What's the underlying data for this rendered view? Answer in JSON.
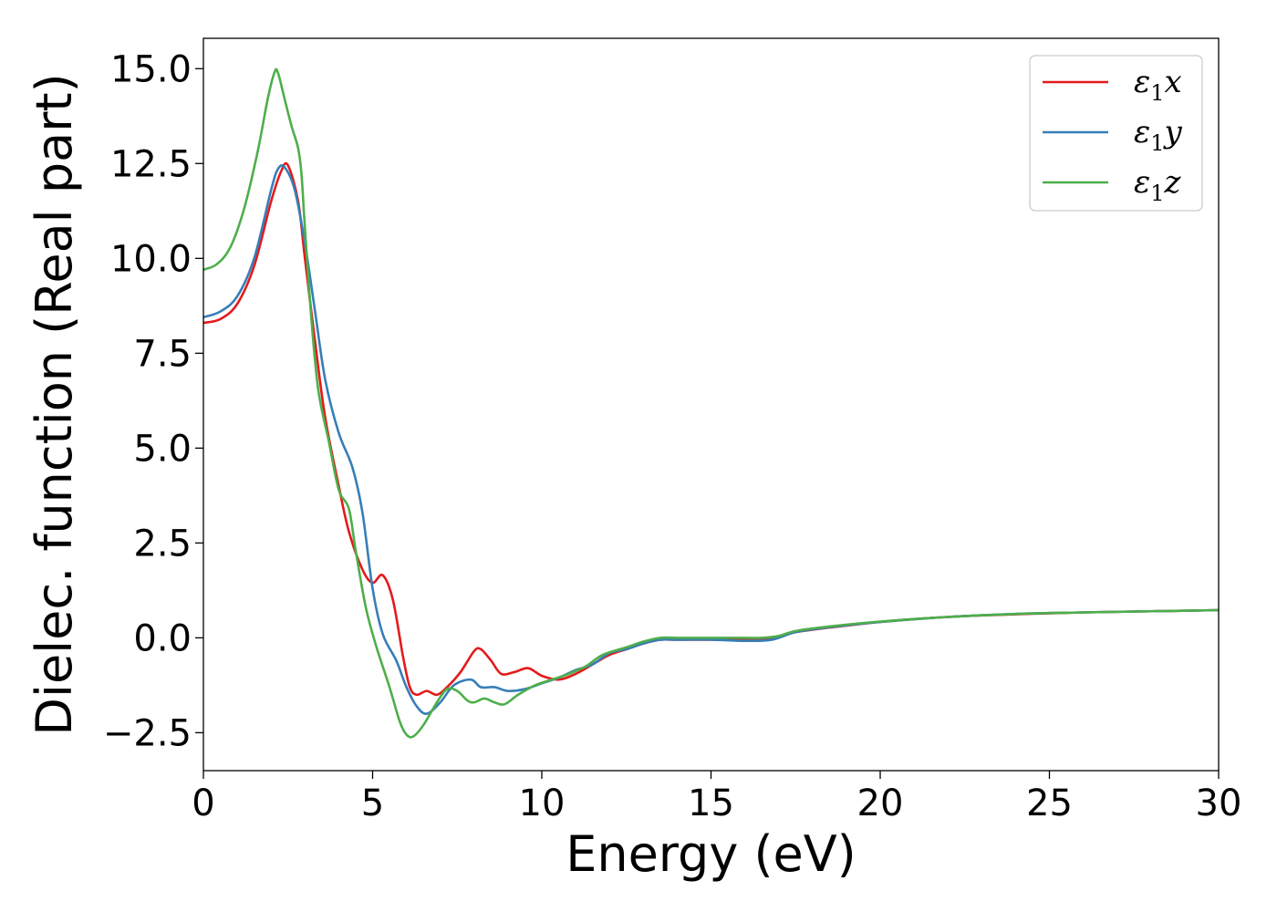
{
  "chart_data": {
    "type": "line",
    "title": "",
    "xlabel": "Energy (eV)",
    "ylabel": "Dielec. function (Real part)",
    "xlim": [
      0,
      30
    ],
    "ylim": [
      -3.5,
      15.8
    ],
    "xticks": [
      0,
      5,
      10,
      15,
      20,
      25,
      30
    ],
    "xtick_labels": [
      "0",
      "5",
      "10",
      "15",
      "20",
      "25",
      "30"
    ],
    "yticks": [
      -2.5,
      0.0,
      2.5,
      5.0,
      7.5,
      10.0,
      12.5,
      15.0
    ],
    "ytick_labels": [
      "−2.5",
      "0.0",
      "2.5",
      "5.0",
      "7.5",
      "10.0",
      "12.5",
      "15.0"
    ],
    "grid": false,
    "legend_position": "top-right",
    "series": [
      {
        "name": "ε1x",
        "name_base": "ε",
        "name_sub": "1",
        "name_suffix": "x",
        "color": "#e41a1c",
        "points": [
          [
            0,
            8.3
          ],
          [
            0.5,
            8.4
          ],
          [
            1.0,
            8.8
          ],
          [
            1.5,
            9.8
          ],
          [
            2.0,
            11.5
          ],
          [
            2.3,
            12.3
          ],
          [
            2.5,
            12.45
          ],
          [
            2.8,
            11.5
          ],
          [
            3.0,
            10.0
          ],
          [
            3.3,
            7.8
          ],
          [
            3.6,
            5.8
          ],
          [
            4.0,
            4.0
          ],
          [
            4.3,
            2.8
          ],
          [
            4.7,
            1.8
          ],
          [
            5.0,
            1.45
          ],
          [
            5.3,
            1.65
          ],
          [
            5.6,
            1.0
          ],
          [
            5.9,
            -0.5
          ],
          [
            6.1,
            -1.3
          ],
          [
            6.3,
            -1.5
          ],
          [
            6.6,
            -1.4
          ],
          [
            6.9,
            -1.5
          ],
          [
            7.2,
            -1.3
          ],
          [
            7.6,
            -0.9
          ],
          [
            8.0,
            -0.35
          ],
          [
            8.2,
            -0.3
          ],
          [
            8.5,
            -0.6
          ],
          [
            8.8,
            -0.95
          ],
          [
            9.2,
            -0.9
          ],
          [
            9.6,
            -0.8
          ],
          [
            10.0,
            -1.0
          ],
          [
            10.5,
            -1.1
          ],
          [
            11.0,
            -0.95
          ],
          [
            11.5,
            -0.7
          ],
          [
            12.0,
            -0.45
          ],
          [
            12.5,
            -0.3
          ],
          [
            13.0,
            -0.15
          ],
          [
            13.5,
            -0.05
          ],
          [
            14.0,
            -0.05
          ],
          [
            15.0,
            -0.05
          ],
          [
            16.0,
            -0.05
          ],
          [
            16.8,
            0.0
          ],
          [
            17.5,
            0.15
          ],
          [
            18.5,
            0.27
          ],
          [
            20.0,
            0.42
          ],
          [
            22.0,
            0.55
          ],
          [
            24.0,
            0.62
          ],
          [
            26.0,
            0.67
          ],
          [
            28.0,
            0.7
          ],
          [
            30.0,
            0.73
          ]
        ]
      },
      {
        "name": "ε1y",
        "name_base": "ε",
        "name_sub": "1",
        "name_suffix": "y",
        "color": "#377eb8",
        "points": [
          [
            0,
            8.45
          ],
          [
            0.5,
            8.6
          ],
          [
            1.0,
            9.0
          ],
          [
            1.5,
            10.0
          ],
          [
            2.0,
            11.8
          ],
          [
            2.2,
            12.35
          ],
          [
            2.4,
            12.4
          ],
          [
            2.7,
            11.8
          ],
          [
            3.0,
            10.4
          ],
          [
            3.3,
            8.6
          ],
          [
            3.6,
            6.8
          ],
          [
            4.0,
            5.4
          ],
          [
            4.4,
            4.5
          ],
          [
            4.7,
            3.3
          ],
          [
            5.0,
            1.3
          ],
          [
            5.3,
            0.1
          ],
          [
            5.7,
            -0.6
          ],
          [
            6.0,
            -1.3
          ],
          [
            6.3,
            -1.8
          ],
          [
            6.6,
            -2.0
          ],
          [
            7.0,
            -1.7
          ],
          [
            7.4,
            -1.25
          ],
          [
            7.9,
            -1.1
          ],
          [
            8.2,
            -1.3
          ],
          [
            8.6,
            -1.3
          ],
          [
            9.0,
            -1.4
          ],
          [
            9.5,
            -1.35
          ],
          [
            10.0,
            -1.2
          ],
          [
            10.5,
            -1.05
          ],
          [
            11.0,
            -0.85
          ],
          [
            11.5,
            -0.7
          ],
          [
            12.0,
            -0.4
          ],
          [
            12.5,
            -0.3
          ],
          [
            13.0,
            -0.15
          ],
          [
            13.5,
            -0.05
          ],
          [
            14.0,
            -0.05
          ],
          [
            15.0,
            -0.05
          ],
          [
            16.0,
            -0.08
          ],
          [
            16.8,
            -0.05
          ],
          [
            17.5,
            0.15
          ],
          [
            18.5,
            0.28
          ],
          [
            20.0,
            0.42
          ],
          [
            22.0,
            0.55
          ],
          [
            24.0,
            0.63
          ],
          [
            26.0,
            0.67
          ],
          [
            28.0,
            0.7
          ],
          [
            30.0,
            0.73
          ]
        ]
      },
      {
        "name": "ε1z",
        "name_base": "ε",
        "name_sub": "1",
        "name_suffix": "z",
        "color": "#4daf4a",
        "points": [
          [
            0,
            9.7
          ],
          [
            0.4,
            9.85
          ],
          [
            0.8,
            10.3
          ],
          [
            1.2,
            11.3
          ],
          [
            1.6,
            12.8
          ],
          [
            1.9,
            14.2
          ],
          [
            2.1,
            14.9
          ],
          [
            2.2,
            14.9
          ],
          [
            2.4,
            14.2
          ],
          [
            2.6,
            13.5
          ],
          [
            2.8,
            12.9
          ],
          [
            2.9,
            12.2
          ],
          [
            3.0,
            10.8
          ],
          [
            3.2,
            8.3
          ],
          [
            3.4,
            6.5
          ],
          [
            3.7,
            5.2
          ],
          [
            4.0,
            3.9
          ],
          [
            4.3,
            3.4
          ],
          [
            4.5,
            2.3
          ],
          [
            4.8,
            0.8
          ],
          [
            5.1,
            -0.2
          ],
          [
            5.5,
            -1.3
          ],
          [
            5.8,
            -2.2
          ],
          [
            6.0,
            -2.55
          ],
          [
            6.2,
            -2.6
          ],
          [
            6.5,
            -2.3
          ],
          [
            6.9,
            -1.7
          ],
          [
            7.2,
            -1.35
          ],
          [
            7.5,
            -1.4
          ],
          [
            7.8,
            -1.65
          ],
          [
            8.0,
            -1.7
          ],
          [
            8.3,
            -1.6
          ],
          [
            8.6,
            -1.7
          ],
          [
            8.9,
            -1.75
          ],
          [
            9.3,
            -1.5
          ],
          [
            9.8,
            -1.25
          ],
          [
            10.3,
            -1.1
          ],
          [
            10.8,
            -0.95
          ],
          [
            11.3,
            -0.75
          ],
          [
            11.8,
            -0.45
          ],
          [
            12.5,
            -0.25
          ],
          [
            13.0,
            -0.1
          ],
          [
            13.5,
            0.0
          ],
          [
            14.0,
            0.0
          ],
          [
            15.0,
            0.0
          ],
          [
            15.8,
            0.0
          ],
          [
            16.5,
            0.0
          ],
          [
            17.0,
            0.05
          ],
          [
            17.5,
            0.18
          ],
          [
            18.5,
            0.3
          ],
          [
            20.0,
            0.43
          ],
          [
            22.0,
            0.55
          ],
          [
            24.0,
            0.63
          ],
          [
            26.0,
            0.67
          ],
          [
            28.0,
            0.7
          ],
          [
            30.0,
            0.73
          ]
        ]
      }
    ]
  }
}
